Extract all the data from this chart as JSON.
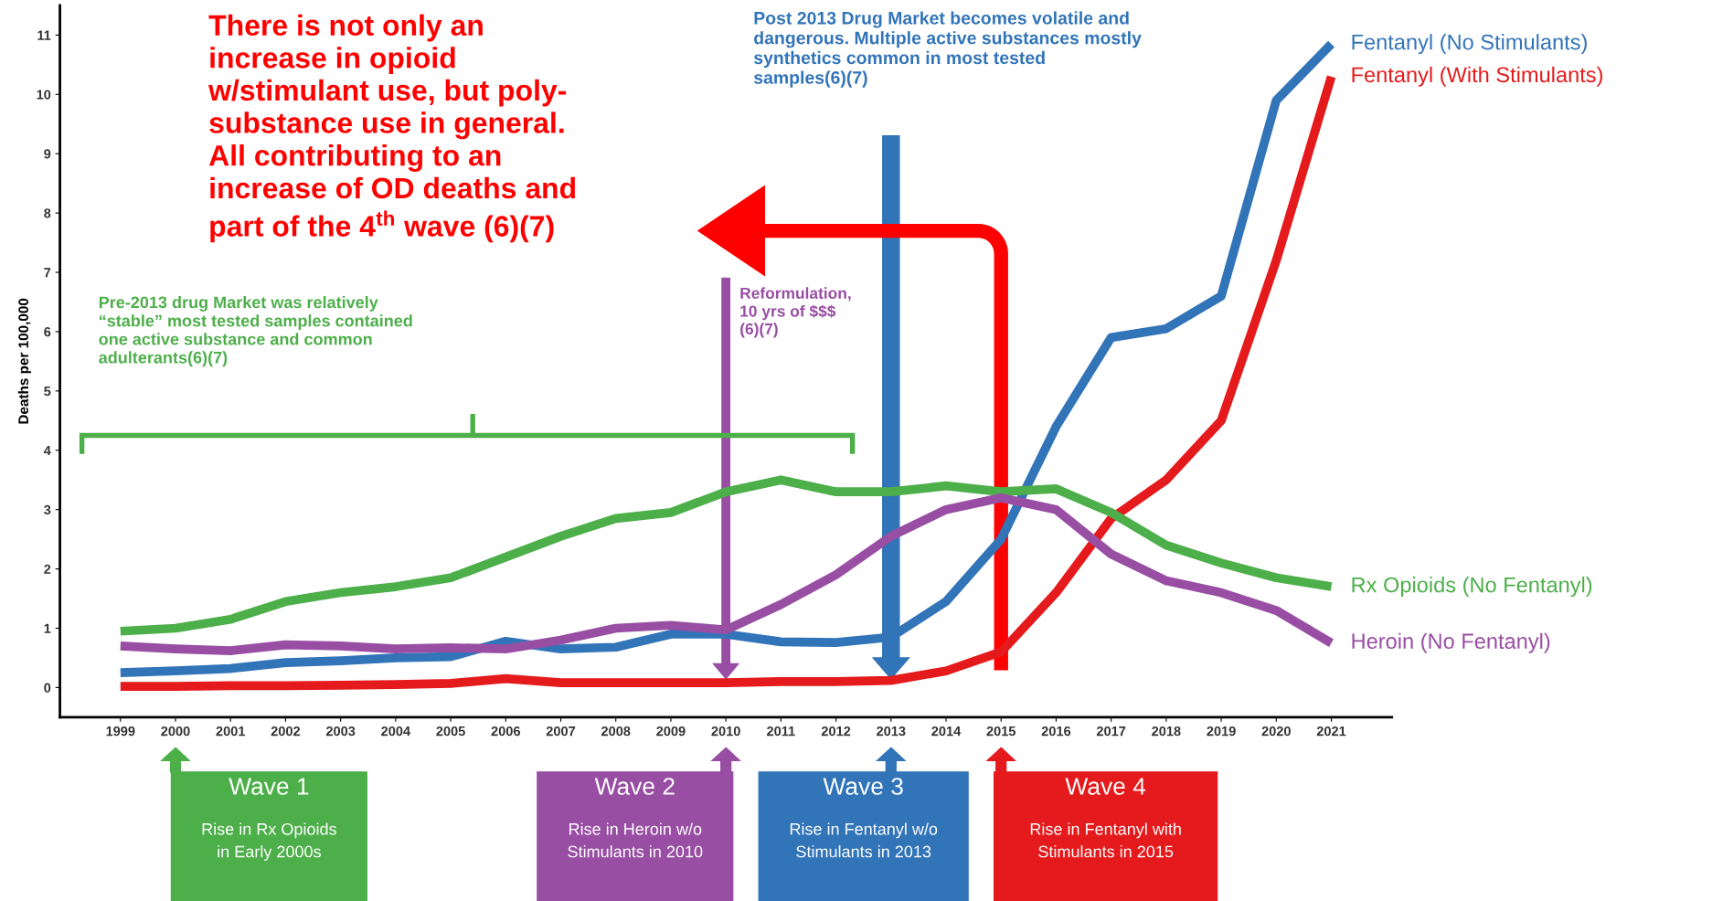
{
  "chart_data": {
    "type": "line",
    "ylabel": "Deaths per 100,000",
    "x": [
      1999,
      2000,
      2001,
      2002,
      2003,
      2004,
      2005,
      2006,
      2007,
      2008,
      2009,
      2010,
      2011,
      2012,
      2013,
      2014,
      2015,
      2016,
      2017,
      2018,
      2019,
      2020,
      2021
    ],
    "series": [
      {
        "name": "Fentanyl (No Stimulants)",
        "color": "#3274b8",
        "values": [
          0.25,
          0.28,
          0.32,
          0.42,
          0.45,
          0.5,
          0.52,
          0.78,
          0.65,
          0.68,
          0.9,
          0.9,
          0.77,
          0.76,
          0.85,
          1.45,
          2.5,
          4.4,
          5.9,
          6.05,
          6.6,
          9.9,
          10.85
        ]
      },
      {
        "name": "Fentanyl (With Stimulants)",
        "color": "#e41a1c",
        "values": [
          0.02,
          0.02,
          0.03,
          0.03,
          0.04,
          0.05,
          0.07,
          0.15,
          0.08,
          0.08,
          0.08,
          0.08,
          0.1,
          0.1,
          0.12,
          0.28,
          0.6,
          1.6,
          2.85,
          3.5,
          4.5,
          7.2,
          10.3
        ]
      },
      {
        "name": "Rx Opioids (No Fentanyl)",
        "color": "#4daf4a",
        "values": [
          0.95,
          1.0,
          1.15,
          1.45,
          1.6,
          1.7,
          1.85,
          2.2,
          2.55,
          2.85,
          2.95,
          3.3,
          3.5,
          3.3,
          3.3,
          3.4,
          3.3,
          3.35,
          2.95,
          2.4,
          2.1,
          1.85,
          1.7
        ]
      },
      {
        "name": "Heroin (No Fentanyl)",
        "color": "#984ea3",
        "values": [
          0.7,
          0.65,
          0.62,
          0.72,
          0.7,
          0.65,
          0.67,
          0.65,
          0.8,
          1.0,
          1.05,
          0.97,
          1.4,
          1.9,
          2.55,
          3.0,
          3.2,
          3.0,
          2.25,
          1.8,
          1.6,
          1.3,
          0.75
        ]
      }
    ],
    "xlim": [
      1997.9,
      2022.1
    ],
    "ylim": [
      -0.5,
      11.5
    ],
    "xticks": [
      1999,
      2000,
      2001,
      2002,
      2003,
      2004,
      2005,
      2006,
      2007,
      2008,
      2009,
      2010,
      2011,
      2012,
      2013,
      2014,
      2015,
      2016,
      2017,
      2018,
      2019,
      2020,
      2021
    ],
    "yticks": [
      0,
      1,
      2,
      3,
      4,
      5,
      6,
      7,
      8,
      9,
      10,
      11
    ],
    "grid": false,
    "legend": false,
    "marker": "none",
    "line_style": "solid",
    "annotations": [
      "Post 2013 Drug Market becomes volatile and\ndangerous. Multiple active substances mostly\nsynthetics common in most tested\nsamples(6)(7)",
      "There is not only an\nincrease in opioid\nw/stimulant use, but poly-\nsubstance use in general.\nAll contributing to an\nincrease of OD deaths and\npart of the 4$^{th}$ wave (6)(7)",
      "Reformulation,\n10 yrs of $$$\n(6)(7)",
      "Pre-2013 drug Market was relatively\n“stable” most tested samples contained\none active substance and common\nadulterants(6)(7)",
      "Wave 1\nRise in Rx Opioids\nin Early 2000s",
      "Wave 2\nRise in Heroin w/o\nStimulants in 2010",
      "Wave 3\nRise in Fentanyl w/o\nStimulants in 2013",
      "Wave 4\nRise in Fentanyl with\nStimulants in 2015"
    ]
  }
}
